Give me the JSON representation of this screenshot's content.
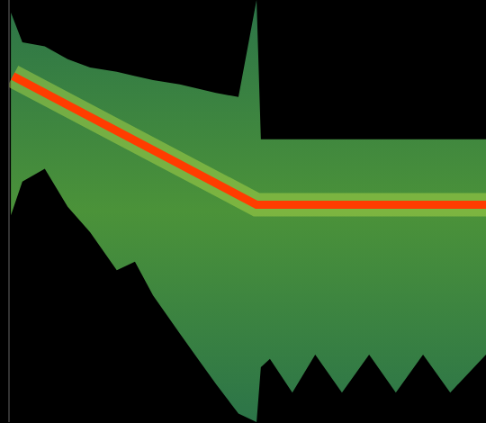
{
  "chart_data": {
    "type": "spectrogram",
    "xlim": [
      0,
      100
    ],
    "ylim": [
      0,
      100
    ],
    "tick_labels": false,
    "grid": false,
    "series": [
      {
        "type": "area",
        "color": "#2e7a4c",
        "x": [
          0.4,
          2.8,
          7.5,
          12.3,
          17,
          22.6,
          26.4,
          30.2,
          35.8,
          39.6,
          43.4,
          48.1,
          51.9,
          52.8,
          54.7,
          59.4,
          64.2,
          69.8,
          75.5,
          81.1,
          86.8,
          92.5,
          100
        ],
        "low": [
          49,
          57,
          60,
          51,
          45,
          36,
          38,
          30,
          21,
          15,
          9,
          2,
          0,
          13,
          15,
          7,
          16,
          7,
          16,
          7,
          16,
          7,
          16
        ],
        "high": [
          97,
          90,
          89,
          86,
          84,
          83,
          82,
          81,
          80,
          79,
          78,
          77,
          100,
          67,
          67,
          67,
          67,
          67,
          67,
          67,
          67,
          67,
          67
        ]
      },
      {
        "type": "line",
        "color": "#ff3c00",
        "x": [
          0.8,
          51.9,
          100
        ],
        "values": [
          82,
          51.5,
          51.5
        ]
      }
    ]
  }
}
